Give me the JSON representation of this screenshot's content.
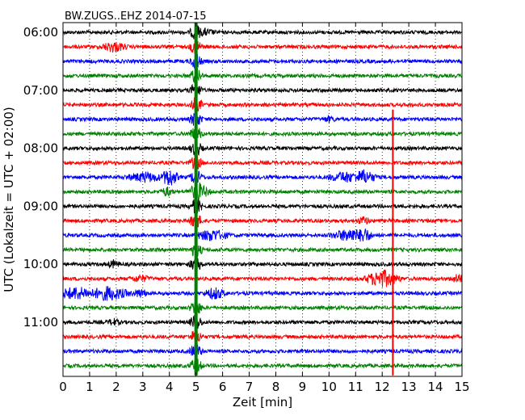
{
  "chart_data": {
    "type": "line",
    "title": "BW.ZUGS..EHZ 2014-07-15",
    "xlabel": "Zeit  [min]",
    "ylabel": "UTC (Lokalzeit = UTC + 02:00)",
    "xlim": [
      0,
      15
    ],
    "x_ticks": [
      "0",
      "1",
      "2",
      "3",
      "4",
      "5",
      "6",
      "7",
      "8",
      "9",
      "10",
      "11",
      "12",
      "13",
      "14",
      "15"
    ],
    "y_ticks": [
      "06:00",
      "07:00",
      "08:00",
      "09:00",
      "10:00",
      "11:00"
    ],
    "rows": 24,
    "row_interval_min": 15,
    "start_time": "06:00",
    "colors": [
      "#000000",
      "#ff0000",
      "#0000ff",
      "#008000"
    ],
    "grid": "dotted vertical",
    "series": [
      {
        "row": 0,
        "time": "06:00",
        "color": "#000000",
        "events": [
          {
            "x": 5.0,
            "amp": 2.0,
            "dur": 0.3
          },
          {
            "x": 5.3,
            "amp": 0.8,
            "dur": 0.5
          }
        ]
      },
      {
        "row": 1,
        "time": "06:15",
        "color": "#ff0000",
        "events": [
          {
            "x": 1.9,
            "amp": 1.3,
            "dur": 0.6
          },
          {
            "x": 5.0,
            "amp": 2.0,
            "dur": 0.3
          }
        ]
      },
      {
        "row": 2,
        "time": "06:30",
        "color": "#0000ff",
        "events": [
          {
            "x": 5.0,
            "amp": 2.0,
            "dur": 0.3
          }
        ]
      },
      {
        "row": 3,
        "time": "06:45",
        "color": "#008000",
        "events": [
          {
            "x": 5.0,
            "amp": 2.0,
            "dur": 0.3
          }
        ]
      },
      {
        "row": 4,
        "time": "07:00",
        "color": "#000000",
        "events": [
          {
            "x": 5.0,
            "amp": 2.0,
            "dur": 0.3
          }
        ]
      },
      {
        "row": 5,
        "time": "07:15",
        "color": "#ff0000",
        "events": [
          {
            "x": 5.0,
            "amp": 2.0,
            "dur": 0.3
          }
        ]
      },
      {
        "row": 6,
        "time": "07:30",
        "color": "#0000ff",
        "events": [
          {
            "x": 5.0,
            "amp": 2.0,
            "dur": 0.3
          },
          {
            "x": 10.0,
            "amp": 0.6,
            "dur": 0.3
          }
        ]
      },
      {
        "row": 7,
        "time": "07:45",
        "color": "#008000",
        "events": [
          {
            "x": 5.0,
            "amp": 2.0,
            "dur": 0.3
          }
        ]
      },
      {
        "row": 8,
        "time": "08:00",
        "color": "#000000",
        "events": [
          {
            "x": 5.0,
            "amp": 2.0,
            "dur": 0.3
          }
        ]
      },
      {
        "row": 9,
        "time": "08:15",
        "color": "#ff0000",
        "events": [
          {
            "x": 5.0,
            "amp": 2.0,
            "dur": 0.3
          }
        ]
      },
      {
        "row": 10,
        "time": "08:30",
        "color": "#0000ff",
        "events": [
          {
            "x": 3.1,
            "amp": 1.2,
            "dur": 0.9
          },
          {
            "x": 4.0,
            "amp": 2.5,
            "dur": 0.4
          },
          {
            "x": 5.0,
            "amp": 2.0,
            "dur": 0.3
          },
          {
            "x": 10.6,
            "amp": 1.3,
            "dur": 0.8
          },
          {
            "x": 11.3,
            "amp": 1.8,
            "dur": 0.6
          }
        ]
      },
      {
        "row": 11,
        "time": "08:45",
        "color": "#008000",
        "events": [
          {
            "x": 3.9,
            "amp": 1.1,
            "dur": 0.3
          },
          {
            "x": 5.1,
            "amp": 2.2,
            "dur": 0.5
          }
        ]
      },
      {
        "row": 12,
        "time": "09:00",
        "color": "#000000",
        "events": [
          {
            "x": 5.0,
            "amp": 2.0,
            "dur": 0.3
          }
        ]
      },
      {
        "row": 13,
        "time": "09:15",
        "color": "#ff0000",
        "events": [
          {
            "x": 5.0,
            "amp": 2.0,
            "dur": 0.3
          },
          {
            "x": 11.3,
            "amp": 0.9,
            "dur": 0.3
          }
        ]
      },
      {
        "row": 14,
        "time": "09:30",
        "color": "#0000ff",
        "events": [
          {
            "x": 5.6,
            "amp": 1.4,
            "dur": 0.8
          },
          {
            "x": 10.8,
            "amp": 1.6,
            "dur": 0.9
          },
          {
            "x": 11.3,
            "amp": 2.0,
            "dur": 0.4
          }
        ]
      },
      {
        "row": 15,
        "time": "09:45",
        "color": "#008000",
        "events": [
          {
            "x": 5.0,
            "amp": 2.0,
            "dur": 0.3
          }
        ]
      },
      {
        "row": 16,
        "time": "10:00",
        "color": "#000000",
        "events": [
          {
            "x": 1.9,
            "amp": 0.9,
            "dur": 0.3
          },
          {
            "x": 5.0,
            "amp": 2.0,
            "dur": 0.3
          }
        ]
      },
      {
        "row": 17,
        "time": "10:15",
        "color": "#ff0000",
        "events": [
          {
            "x": 2.9,
            "amp": 0.8,
            "dur": 0.5
          },
          {
            "x": 12.0,
            "amp": 2.3,
            "dur": 0.8
          },
          {
            "x": 14.9,
            "amp": 1.2,
            "dur": 0.4
          }
        ]
      },
      {
        "row": 18,
        "time": "10:30",
        "color": "#0000ff",
        "events": [
          {
            "x": 0.5,
            "amp": 1.6,
            "dur": 1.0
          },
          {
            "x": 1.7,
            "amp": 1.8,
            "dur": 1.0
          },
          {
            "x": 2.9,
            "amp": 1.0,
            "dur": 0.4
          },
          {
            "x": 5.7,
            "amp": 1.5,
            "dur": 0.5
          }
        ]
      },
      {
        "row": 19,
        "time": "10:45",
        "color": "#008000",
        "events": [
          {
            "x": 5.0,
            "amp": 2.0,
            "dur": 0.3
          }
        ]
      },
      {
        "row": 20,
        "time": "11:00",
        "color": "#000000",
        "events": [
          {
            "x": 1.9,
            "amp": 0.8,
            "dur": 0.3
          },
          {
            "x": 5.0,
            "amp": 2.0,
            "dur": 0.3
          }
        ]
      },
      {
        "row": 21,
        "time": "11:15",
        "color": "#ff0000",
        "events": [
          {
            "x": 5.0,
            "amp": 2.0,
            "dur": 0.3
          }
        ]
      },
      {
        "row": 22,
        "time": "11:30",
        "color": "#0000ff",
        "events": [
          {
            "x": 5.0,
            "amp": 2.0,
            "dur": 0.3
          }
        ]
      },
      {
        "row": 23,
        "time": "11:45",
        "color": "#008000",
        "events": [
          {
            "x": 5.0,
            "amp": 2.0,
            "dur": 0.3
          }
        ]
      }
    ],
    "markers": [
      {
        "x": 5.0,
        "color": "#008000",
        "rows": [
          0,
          23
        ]
      },
      {
        "x": 12.4,
        "color": "#ff0000",
        "rows": [
          6,
          23
        ]
      }
    ]
  }
}
